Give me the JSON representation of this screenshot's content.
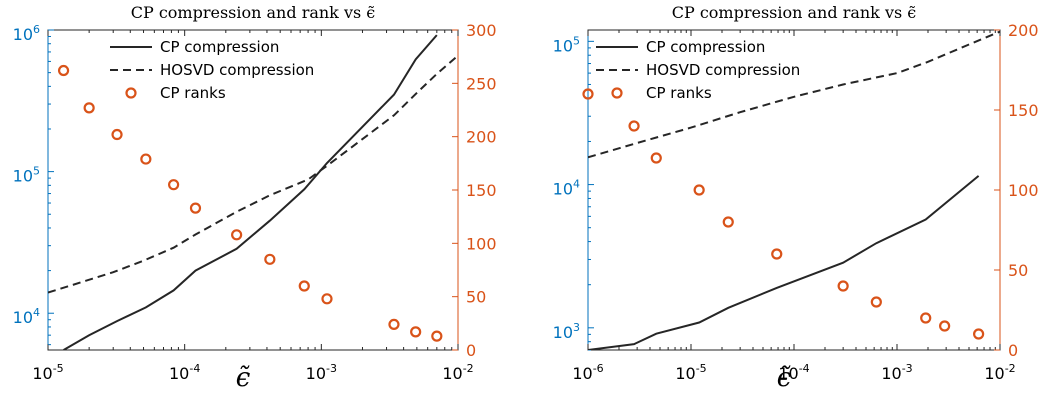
{
  "colors": {
    "left_axis": "#0072BD",
    "right_axis": "#D95319",
    "lines": "#262626",
    "frame": "#262626",
    "background": "#ffffff"
  },
  "chart_data": [
    {
      "type": "line",
      "title": "CP compression and rank vs ϵ̃",
      "xlabel": "ϵ̃",
      "x_scale": "log",
      "xlim": [
        1e-05,
        0.01
      ],
      "x_ticks": [
        {
          "value": 1e-05,
          "base": "10",
          "exp": "-5"
        },
        {
          "value": 0.0001,
          "base": "10",
          "exp": "-4"
        },
        {
          "value": 0.001,
          "base": "10",
          "exp": "-3"
        },
        {
          "value": 0.01,
          "base": "10",
          "exp": "-2"
        }
      ],
      "left_axis": {
        "scale": "log",
        "ylim": [
          5500,
          1000000
        ],
        "ticks": [
          {
            "value": 10000,
            "base": "10",
            "exp": "4"
          },
          {
            "value": 100000,
            "base": "10",
            "exp": "5"
          },
          {
            "value": 1000000,
            "base": "10",
            "exp": "6"
          }
        ]
      },
      "right_axis": {
        "scale": "linear",
        "ylim": [
          0,
          300
        ],
        "ticks": [
          "0",
          "50",
          "100",
          "150",
          "200",
          "250",
          "300"
        ]
      },
      "legend": {
        "position": "top",
        "entries": [
          "CP compression",
          "HOSVD compression",
          "CP ranks"
        ]
      },
      "series": [
        {
          "name": "CP compression",
          "axis": "left",
          "style": "solid",
          "x": [
            1.3e-05,
            2e-05,
            3.2e-05,
            5.2e-05,
            8.3e-05,
            0.00012,
            0.00024,
            0.00042,
            0.00075,
            0.0011,
            0.0034,
            0.0049,
            0.007
          ],
          "y": [
            5500,
            7000,
            8800,
            11000,
            14500,
            20000,
            28500,
            45000,
            75000,
            115000,
            350000,
            620000,
            920000
          ]
        },
        {
          "name": "HOSVD compression",
          "axis": "left",
          "style": "dashed",
          "x": [
            1e-05,
            1.5e-05,
            3e-05,
            5e-05,
            8.3e-05,
            0.00012,
            0.00024,
            0.00042,
            0.0008,
            0.0011,
            0.0034,
            0.005,
            0.007,
            0.01
          ],
          "y": [
            14000,
            15800,
            19500,
            23500,
            29000,
            36000,
            52000,
            68000,
            88000,
            110000,
            250000,
            360000,
            490000,
            660000
          ]
        },
        {
          "name": "CP ranks",
          "axis": "right",
          "style": "circle",
          "x": [
            1.3e-05,
            2e-05,
            3.2e-05,
            5.2e-05,
            8.3e-05,
            0.00012,
            0.00024,
            0.00042,
            0.00075,
            0.0011,
            0.0034,
            0.0049,
            0.007
          ],
          "y": [
            262,
            227,
            202,
            179,
            155,
            133,
            108,
            85,
            60,
            48,
            24,
            17,
            13
          ]
        }
      ]
    },
    {
      "type": "line",
      "title": "CP compression and rank vs ϵ̃",
      "xlabel": "ϵ̃",
      "x_scale": "log",
      "xlim": [
        1e-06,
        0.01
      ],
      "x_ticks": [
        {
          "value": 1e-06,
          "base": "10",
          "exp": "-6"
        },
        {
          "value": 1e-05,
          "base": "10",
          "exp": "-5"
        },
        {
          "value": 0.0001,
          "base": "10",
          "exp": "-4"
        },
        {
          "value": 0.001,
          "base": "10",
          "exp": "-3"
        },
        {
          "value": 0.01,
          "base": "10",
          "exp": "-2"
        }
      ],
      "left_axis": {
        "scale": "log",
        "ylim": [
          700,
          120000
        ],
        "ticks": [
          {
            "value": 1000,
            "base": "10",
            "exp": "3"
          },
          {
            "value": 10000,
            "base": "10",
            "exp": "4"
          },
          {
            "value": 100000,
            "base": "10",
            "exp": "5"
          }
        ]
      },
      "right_axis": {
        "scale": "linear",
        "ylim": [
          0,
          200
        ],
        "ticks": [
          "0",
          "50",
          "100",
          "150",
          "200"
        ]
      },
      "legend": {
        "position": "top-left",
        "entries": [
          "CP compression",
          "HOSVD compression",
          "CP ranks"
        ]
      },
      "series": [
        {
          "name": "CP compression",
          "axis": "left",
          "style": "solid",
          "x": [
            1e-06,
            2.8e-06,
            4.6e-06,
            1.2e-05,
            2.3e-05,
            6.8e-05,
            0.0003,
            0.00063,
            0.0019,
            0.0062
          ],
          "y": [
            700,
            770,
            910,
            1090,
            1380,
            1900,
            2850,
            3900,
            5700,
            11500
          ]
        },
        {
          "name": "HOSVD compression",
          "axis": "left",
          "style": "dashed",
          "x": [
            1e-06,
            3e-06,
            1e-05,
            3e-05,
            0.0001,
            0.0003,
            0.001,
            0.002,
            0.005,
            0.01
          ],
          "y": [
            15500,
            19500,
            25000,
            32000,
            41000,
            50000,
            60000,
            72000,
            95000,
            117000
          ]
        },
        {
          "name": "CP ranks",
          "axis": "right",
          "style": "circle",
          "x": [
            1e-06,
            2.8e-06,
            4.6e-06,
            1.2e-05,
            2.3e-05,
            6.8e-05,
            0.0003,
            0.00063,
            0.0019,
            0.0029,
            0.0062
          ],
          "y": [
            160,
            140,
            120,
            100,
            80,
            60,
            40,
            30,
            20,
            15,
            10
          ]
        }
      ]
    }
  ]
}
